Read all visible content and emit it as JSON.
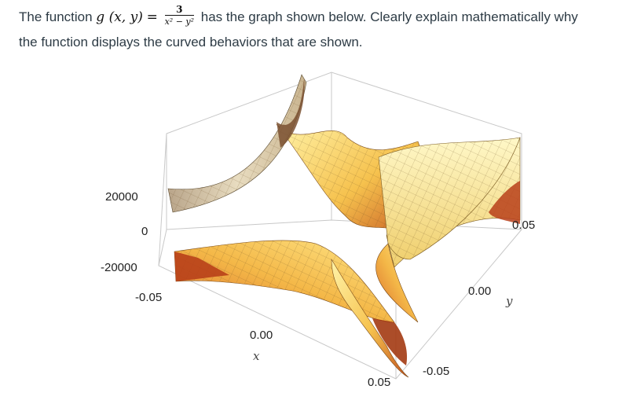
{
  "question": {
    "prefix": "The function",
    "func": "g (x, y)",
    "equals": "=",
    "numerator": "3",
    "denominator": "x² − y²",
    "suffix": "has the graph shown below. Clearly explain mathematically why",
    "line2": "the function displays the curved behaviors that are shown."
  },
  "plot": {
    "z_ticks": [
      "20000",
      "0",
      "-20000"
    ],
    "x_ticks": [
      "-0.05",
      "0.00",
      "0.05"
    ],
    "y_ticks": [
      "-0.05",
      "0.00",
      "0.05"
    ],
    "x_axis_name": "x",
    "y_axis_name": "y",
    "colors": {
      "surface_light": "#ffe98a",
      "surface_mid": "#f0b040",
      "surface_dark": "#b8401a",
      "box": "#c8c8c8"
    }
  }
}
